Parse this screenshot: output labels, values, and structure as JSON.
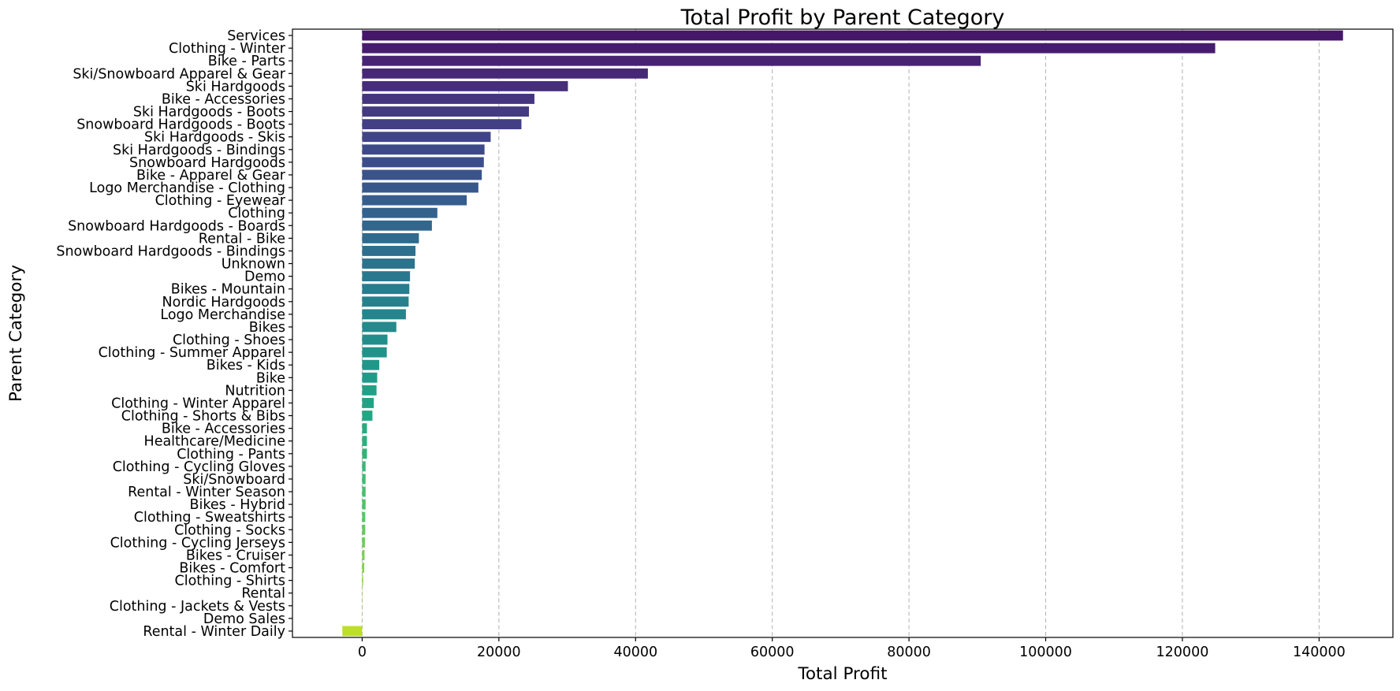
{
  "chart_data": {
    "type": "bar",
    "orientation": "horizontal",
    "title": "Total Profit by Parent Category",
    "xlabel": "Total Profit",
    "ylabel": "Parent Category",
    "xlim": [
      -10200,
      150800
    ],
    "xticks": [
      0,
      20000,
      40000,
      60000,
      80000,
      100000,
      120000,
      140000
    ],
    "grid": "x-axis dashed",
    "colormap": "viridis",
    "colors": {
      "start": "#440154",
      "end": "#d8e219",
      "grid": "#b0b0b0"
    },
    "categories": [
      "Services",
      "Clothing - Winter",
      "Bike - Parts",
      "Ski/Snowboard Apparel & Gear",
      "Ski Hardgoods",
      "Bike - Accessories",
      "Ski Hardgoods - Boots",
      "Snowboard Hardgoods - Boots",
      "Ski Hardgoods - Skis",
      "Ski Hardgoods - Bindings",
      "Snowboard Hardgoods",
      "Bike - Apparel & Gear",
      "Logo Merchandise - Clothing",
      "Clothing - Eyewear",
      "Clothing",
      "Snowboard Hardgoods - Boards",
      "Rental - Bike",
      "Snowboard Hardgoods - Bindings",
      "Unknown",
      "Demo",
      "Bikes - Mountain",
      "Nordic Hardgoods",
      "Logo Merchandise",
      "Bikes",
      "Clothing - Shoes",
      "Clothing - Summer Apparel",
      "Bikes - Kids",
      "Bike",
      "Nutrition",
      "Clothing - Winter Apparel",
      "Clothing - Shorts & Bibs",
      "Bike - Accessories",
      "Healthcare/Medicine",
      "Clothing - Pants",
      "Clothing - Cycling Gloves",
      "Ski/Snowboard",
      "Rental - Winter Season",
      "Bikes - Hybrid",
      "Clothing - Sweatshirts",
      "Clothing - Socks",
      "Clothing - Cycling Jerseys",
      "Bikes - Cruiser",
      "Bikes - Comfort",
      "Clothing - Shirts",
      "Rental",
      "Clothing - Jackets & Vests",
      "Demo Sales",
      "Rental - Winter Daily"
    ],
    "values": [
      143500,
      124800,
      90500,
      41800,
      30100,
      25200,
      24400,
      23300,
      18800,
      17900,
      17800,
      17500,
      17000,
      15300,
      11000,
      10200,
      8300,
      7800,
      7700,
      7000,
      6900,
      6800,
      6400,
      5000,
      3700,
      3600,
      2500,
      2200,
      2100,
      1700,
      1500,
      700,
      700,
      700,
      500,
      500,
      500,
      500,
      450,
      450,
      400,
      350,
      300,
      150,
      50,
      30,
      20,
      -2900
    ]
  }
}
